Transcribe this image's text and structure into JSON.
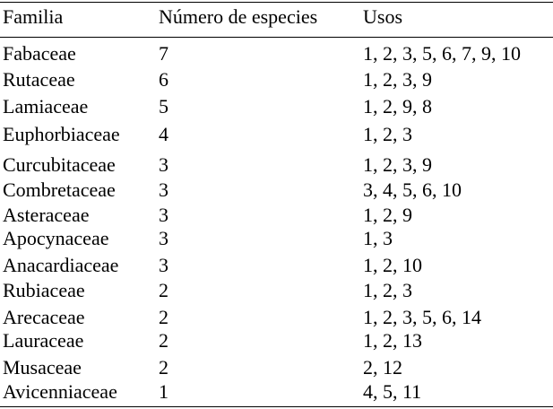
{
  "table": {
    "headers": [
      "Familia",
      "Número de especies",
      "Usos"
    ],
    "rows": [
      {
        "familia": "Fabaceae",
        "numero": "7",
        "usos": "1, 2, 3, 5, 6, 7, 9, 10"
      },
      {
        "familia": "Rutaceae",
        "numero": "6",
        "usos": "1, 2, 3, 9"
      },
      {
        "familia": "Lamiaceae",
        "numero": "5",
        "usos": "1, 2, 9, 8"
      },
      {
        "familia": "Euphorbiaceae",
        "numero": "4",
        "usos": "1, 2, 3"
      },
      {
        "familia": "Curcubitaceae",
        "numero": "3",
        "usos": "1, 2, 3, 9"
      },
      {
        "familia": "Combretaceae",
        "numero": "3",
        "usos": "3, 4, 5, 6, 10"
      },
      {
        "familia": "Asteraceae",
        "numero": "3",
        "usos": "1, 2, 9"
      },
      {
        "familia": "Apocynaceae",
        "numero": "3",
        "usos": "1, 3"
      },
      {
        "familia": "Anacardiaceae",
        "numero": "3",
        "usos": "1, 2, 10"
      },
      {
        "familia": "Rubiaceae",
        "numero": "2",
        "usos": "1, 2, 3"
      },
      {
        "familia": "Arecaceae",
        "numero": "2",
        "usos": "1, 2, 3, 5, 6, 14"
      },
      {
        "familia": "Lauraceae",
        "numero": "2",
        "usos": "1, 2, 13"
      },
      {
        "familia": "Musaceae",
        "numero": "2",
        "usos": "2, 12"
      },
      {
        "familia": "Avicenniaceae",
        "numero": "1",
        "usos": "4, 5, 11"
      }
    ]
  }
}
